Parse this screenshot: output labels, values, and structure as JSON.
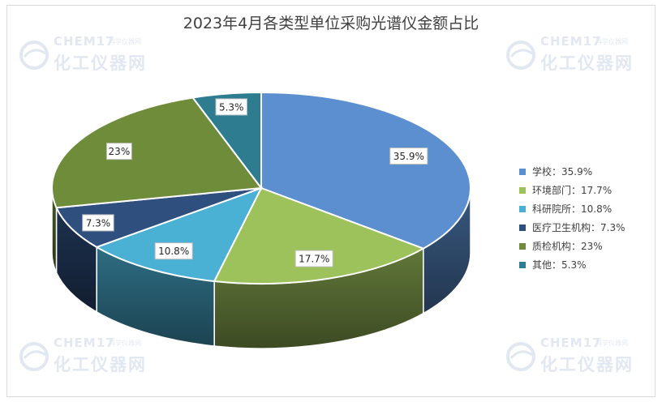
{
  "chart_data": {
    "type": "pie",
    "title": "2023年4月各类型单位采购光谱仪金额占比",
    "categories": [
      "学校",
      "环境部门",
      "科研院所",
      "医疗卫生机构",
      "质检机构",
      "其他"
    ],
    "values": [
      35.9,
      17.7,
      10.8,
      7.3,
      23,
      5.3
    ],
    "data_labels": [
      "35.9%",
      "17.7%",
      "10.8%",
      "7.3%",
      "23%",
      "5.3%"
    ],
    "legend_labels": [
      "学校：35.9%",
      "环境部门：17.7%",
      "科研院所：10.8%",
      "医疗卫生机构：7.3%",
      "质检机构：23%",
      "其他：5.3%"
    ],
    "colors": [
      "#5b8fcf",
      "#9dc25c",
      "#4ab0d4",
      "#2f4f7f",
      "#6f8c3a",
      "#2d7c8f"
    ],
    "legend_position": "right",
    "style": "3d"
  },
  "watermark": {
    "brand": "CHEM17",
    "tagline": "科学仪器网",
    "name": "化工仪器网"
  }
}
